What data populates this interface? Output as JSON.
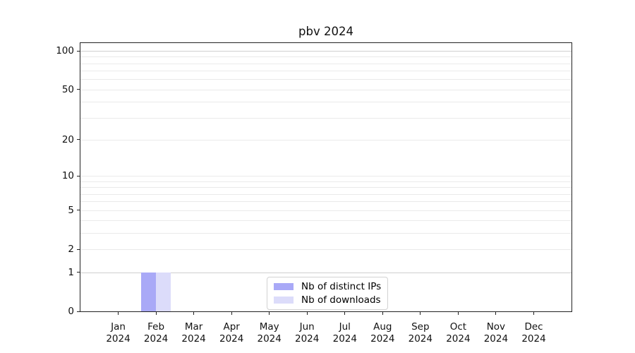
{
  "chart_data": {
    "type": "bar",
    "title": "pbv 2024",
    "months": [
      "Jan",
      "Feb",
      "Mar",
      "Apr",
      "May",
      "Jun",
      "Jul",
      "Aug",
      "Sep",
      "Oct",
      "Nov",
      "Dec"
    ],
    "year_label": "2024",
    "series": [
      {
        "name": "Nb of distinct IPs",
        "color": "#a9a9f7",
        "values": [
          0,
          1,
          0,
          0,
          0,
          0,
          0,
          0,
          0,
          0,
          0,
          0
        ]
      },
      {
        "name": "Nb of downloads",
        "color": "#dcdcfa",
        "values": [
          0,
          1,
          0,
          0,
          0,
          0,
          0,
          0,
          0,
          0,
          0,
          0
        ]
      }
    ],
    "yscale": "log1p",
    "ylim": [
      0,
      115
    ],
    "yticks": [
      0,
      1,
      2,
      5,
      10,
      20,
      50,
      100
    ],
    "minor_yticks": [
      3,
      4,
      6,
      7,
      8,
      9,
      30,
      40,
      60,
      70,
      80,
      90
    ],
    "strong_gridlines": [
      1,
      100
    ],
    "grid": "horizontal",
    "legend_position": "lower-center",
    "colors": {
      "axis": "#222222",
      "grid_minor": "#eaeaea",
      "grid_major": "#cfcfcf",
      "background": "#ffffff"
    }
  }
}
